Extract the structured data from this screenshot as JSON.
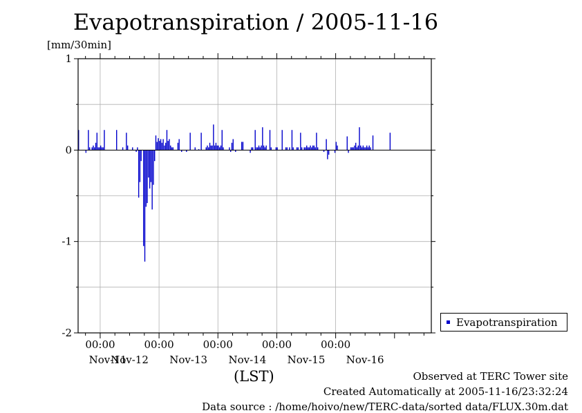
{
  "chart_data": {
    "type": "bar",
    "title": "Evapotranspiration / 2005-11-16",
    "ylabel": "[mm/30min]",
    "xlabel": "(LST)",
    "ylim": [
      -2,
      1
    ],
    "yticks": [
      "1",
      "0",
      "-1",
      "-2"
    ],
    "xticks": [
      {
        "time": "00:00",
        "day": "Nov-12"
      },
      {
        "time": "00:00",
        "day": "Nov-13"
      },
      {
        "time": "00:00",
        "day": "Nov-14"
      },
      {
        "time": "00:00",
        "day": "Nov-15"
      },
      {
        "time": "00:00",
        "day": "Nov-16"
      }
    ],
    "day_labels": [
      "Nov-11",
      "Nov-12",
      "Nov-13",
      "Nov-14",
      "Nov-15",
      "Nov-16"
    ],
    "legend": {
      "label": "Evapotranspiration",
      "position": "right"
    },
    "grid": true,
    "series": [
      {
        "name": "Evapotranspiration",
        "color": "#0000cc",
        "x_start": "2005-11-10 15:00",
        "interval_hours": 0.5,
        "values": [
          0.22,
          0,
          0,
          0,
          0,
          0,
          -0.03,
          0,
          0.22,
          0.03,
          0,
          0.03,
          0.05,
          0.03,
          0.08,
          0.19,
          0.03,
          0.03,
          0.05,
          0.03,
          0.03,
          0.22,
          0,
          0,
          0,
          0,
          0,
          0,
          0,
          0,
          0,
          0.22,
          0,
          0,
          0,
          0,
          0.03,
          0,
          0,
          0.19,
          0.05,
          0,
          0,
          0,
          0.03,
          0,
          0,
          -0.02,
          0.03,
          -0.52,
          -0.35,
          -0.12,
          0,
          -1.05,
          -1.22,
          -0.62,
          -0.58,
          -0.3,
          -0.42,
          -0.35,
          -0.65,
          -0.38,
          -0.12,
          0.16,
          0.09,
          0.13,
          0.1,
          0.12,
          0.08,
          0.12,
          0.05,
          0.08,
          0.22,
          0.1,
          0.12,
          0.05,
          0.03,
          0.03,
          0,
          0,
          0,
          0.08,
          0.12,
          0,
          -0.02,
          0,
          0,
          0,
          -0.02,
          0,
          0,
          0.19,
          0,
          0,
          0,
          0.03,
          0,
          0,
          0.01,
          0,
          0.19,
          0,
          0,
          0,
          0.03,
          0.05,
          0.03,
          0.08,
          0.05,
          0.05,
          0.28,
          0.05,
          0.08,
          0.05,
          0.05,
          0.03,
          0.05,
          0.22,
          0.03,
          0,
          0,
          0,
          0,
          0.03,
          -0.02,
          0.08,
          0.12,
          0,
          -0.02,
          0,
          0,
          0,
          0,
          0.09,
          0.09,
          0,
          0,
          0,
          0,
          0,
          -0.03,
          0.03,
          0.03,
          0,
          0.22,
          0.03,
          0.03,
          0.05,
          0.03,
          0.05,
          0.25,
          0.05,
          0.03,
          0.05,
          0,
          0,
          0.22,
          0.03,
          0,
          0,
          0,
          0.03,
          0.03,
          0,
          0,
          0,
          0.22,
          0,
          0,
          0.03,
          0.03,
          0,
          0.03,
          0,
          0.22,
          0.03,
          0,
          0,
          0.03,
          0.03,
          0,
          0.19,
          0.03,
          0,
          0.03,
          0.03,
          0.05,
          0.03,
          0.03,
          0.05,
          0.03,
          0.05,
          0.05,
          0.03,
          0.19,
          0.03,
          0,
          0,
          0,
          0,
          -0.02,
          0,
          0.12,
          -0.1,
          -0.05,
          0,
          0,
          0,
          0,
          -0.03,
          0.09,
          0.05,
          0,
          0,
          0,
          0,
          0,
          0,
          0,
          0.15,
          -0.03,
          0,
          0.03,
          0.03,
          0.03,
          0.05,
          0.08,
          0.03,
          0.05,
          0.25,
          0.05,
          0.03,
          0.05,
          0.03,
          0.03,
          0.05,
          0.03,
          0.05,
          0.03,
          0,
          0.16,
          0,
          0,
          0,
          0,
          0,
          0,
          0,
          0,
          0,
          0,
          0,
          0,
          0,
          0.19
        ]
      }
    ]
  },
  "footer": {
    "site": "Observed at TERC Tower site",
    "created": "Created Automatically at 2005-11-16/23:32:24",
    "source": "Data source : /home/hoivo/new/TERC-data/sorted  data/FLUX.30m.dat"
  }
}
